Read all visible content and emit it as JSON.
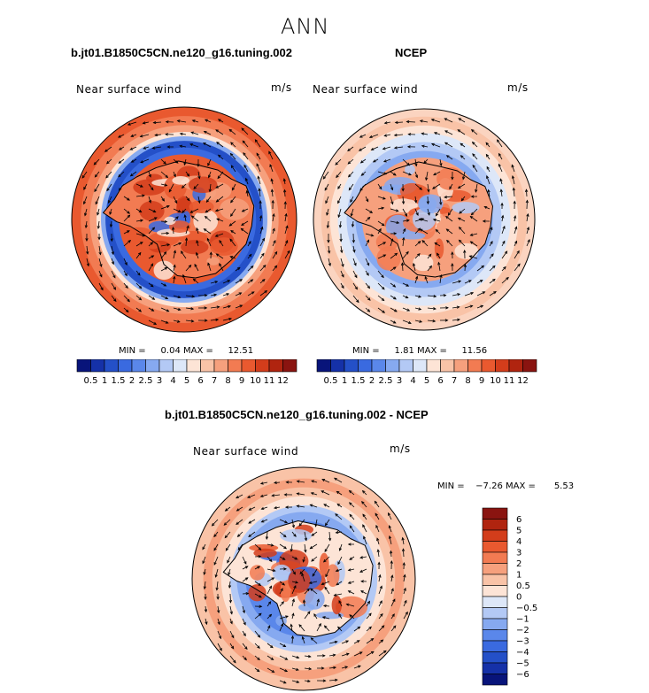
{
  "figure": {
    "main_title": "ANN",
    "variable": "Near surface wind",
    "units": "m/s"
  },
  "panels": [
    {
      "id": "model",
      "title": "b.jt01.B1850C5CN.ne120_g16.tuning.002",
      "variable": "Near surface wind",
      "units": "m/s",
      "min_label": "MIN =",
      "min": "0.04",
      "max_label": "MAX =",
      "max": "12.51"
    },
    {
      "id": "obs",
      "title": "NCEP",
      "variable": "Near surface wind",
      "units": "m/s",
      "min_label": "MIN =",
      "min": "1.81",
      "max_label": "MAX =",
      "max": "11.56"
    },
    {
      "id": "diff",
      "title": "b.jt01.B1850C5CN.ne120_g16.tuning.002 - NCEP",
      "variable": "Near surface wind",
      "units": "m/s",
      "min_label": "MIN =",
      "min": "−7.26",
      "max_label": "MAX =",
      "max": "5.53"
    }
  ],
  "colorbar_abs": {
    "labels": [
      "0.5",
      "1",
      "1.5",
      "2",
      "2.5",
      "3",
      "4",
      "5",
      "6",
      "7",
      "8",
      "9",
      "10",
      "11",
      "12"
    ],
    "colors": [
      "#08147a",
      "#1531a8",
      "#2450c8",
      "#3a6ae0",
      "#5a87ea",
      "#86a9f0",
      "#b3c9f5",
      "#dde7f8",
      "#fde4d6",
      "#f9c3a7",
      "#f6a07d",
      "#f27b52",
      "#e9592f",
      "#d33d1b",
      "#b0240f",
      "#8a1410"
    ]
  },
  "colorbar_diff": {
    "labels": [
      "6",
      "5",
      "4",
      "3",
      "2",
      "1",
      "0.5",
      "0",
      "−0.5",
      "−1",
      "−2",
      "−3",
      "−4",
      "−5",
      "−6"
    ],
    "colors": [
      "#8a1410",
      "#b0240f",
      "#d33d1b",
      "#e9592f",
      "#f27b52",
      "#f6a07d",
      "#f9c3a7",
      "#fde4d6",
      "#dde7f8",
      "#b3c9f5",
      "#86a9f0",
      "#5a87ea",
      "#3a6ae0",
      "#2450c8",
      "#1531a8",
      "#08147a"
    ]
  }
}
